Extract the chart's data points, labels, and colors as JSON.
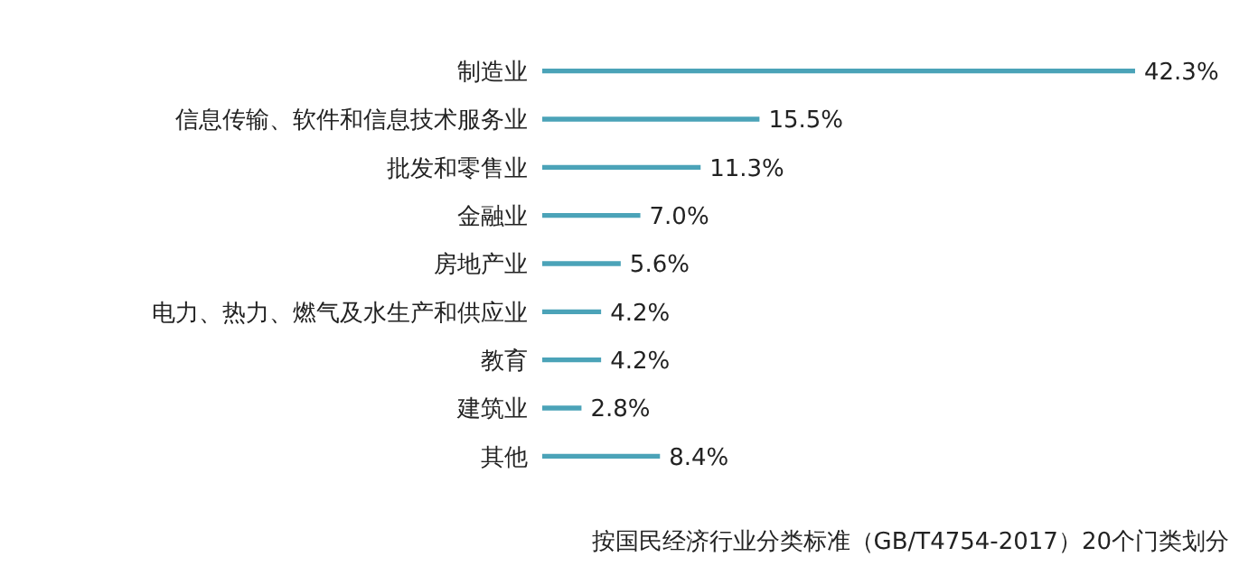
{
  "chart_data": {
    "type": "bar",
    "orientation": "horizontal",
    "categories": [
      "制造业",
      "信息传输、软件和信息技术服务业",
      "批发和零售业",
      "金融业",
      "房地产业",
      "电力、热力、燃气及水生产和供应业",
      "教育",
      "建筑业",
      "其他"
    ],
    "values": [
      42.3,
      15.5,
      11.3,
      7.0,
      5.6,
      4.2,
      4.2,
      2.8,
      8.4
    ],
    "value_labels": [
      "42.3%",
      "15.5%",
      "11.3%",
      "7.0%",
      "5.6%",
      "4.2%",
      "4.2%",
      "2.8%",
      "8.4%"
    ],
    "color": "#4ba3b8",
    "annotations": [
      "按国民经济行业分类标准（GB/T4754-2017）20个门类划分"
    ]
  }
}
